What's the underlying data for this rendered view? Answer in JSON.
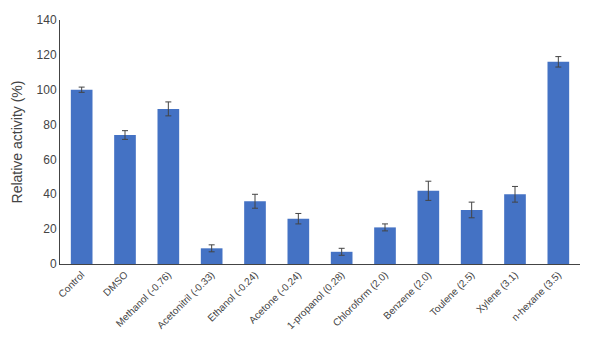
{
  "chart_data": {
    "type": "bar",
    "categories": [
      "Control",
      "DMSO",
      "Methanol (-0.76)",
      "Acetonitril (-0.33)",
      "Ethanol (-0.24)",
      "Acetone (-0.24)",
      "1-propanol (0.28)",
      "Chloroform (2.0)",
      "Benzene (2.0)",
      "Toulene (2.5)",
      "Xylene (3.1)",
      "n-hexane (3.5)"
    ],
    "values": [
      100,
      74,
      89,
      9,
      36,
      26,
      7,
      21,
      42,
      31,
      40,
      116
    ],
    "errors": [
      1.5,
      2.5,
      4.0,
      2.0,
      4.0,
      3.0,
      2.0,
      2.0,
      5.5,
      4.5,
      4.5,
      3.0
    ],
    "color": "#4472C4",
    "ylabel": "Relative activity (%)",
    "ylim": [
      0,
      140
    ],
    "yticks": [
      0,
      20,
      40,
      60,
      80,
      100,
      120,
      140
    ],
    "grid": false
  }
}
